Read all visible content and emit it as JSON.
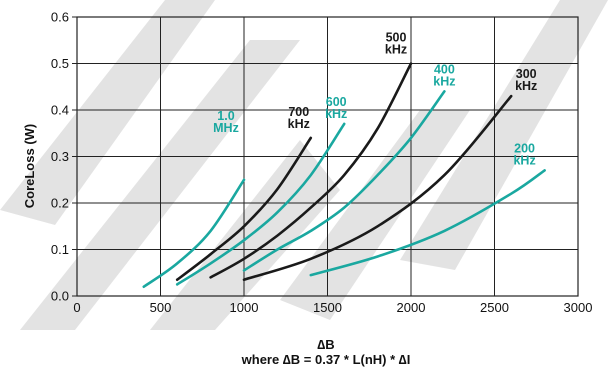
{
  "chart_data": {
    "type": "line",
    "title": "",
    "xlabel": "∆B",
    "xlabel_note": "where ∆B = 0.37 * L(nH) * ∆I",
    "ylabel": "CoreLoss (W)",
    "xlim": [
      0,
      3000
    ],
    "ylim": [
      0,
      0.6
    ],
    "xticks": [
      "0",
      "500",
      "1000",
      "1500",
      "2000",
      "2500",
      "3000"
    ],
    "yticks": [
      "0.0",
      "0.1",
      "0.2",
      "0.3",
      "0.4",
      "0.5",
      "0.6"
    ],
    "grid": true,
    "watermark": "IMAGE",
    "colors": {
      "black": "#1a1a1a",
      "teal": "#1aa8a0"
    },
    "series": [
      {
        "name": "1.0 MHz",
        "label_lines": [
          "1.0",
          "MHz"
        ],
        "color": "teal",
        "x": [
          400,
          600,
          800,
          1000
        ],
        "y": [
          0.02,
          0.07,
          0.14,
          0.25
        ]
      },
      {
        "name": "700 kHz",
        "label_lines": [
          "700",
          "kHz"
        ],
        "color": "black",
        "x": [
          600,
          800,
          1000,
          1200,
          1400
        ],
        "y": [
          0.035,
          0.09,
          0.15,
          0.23,
          0.34
        ]
      },
      {
        "name": "600 kHz",
        "label_lines": [
          "600",
          "kHz"
        ],
        "color": "teal",
        "x": [
          600,
          800,
          1000,
          1200,
          1400,
          1600
        ],
        "y": [
          0.025,
          0.07,
          0.12,
          0.18,
          0.26,
          0.37
        ]
      },
      {
        "name": "500 kHz",
        "label_lines": [
          "500",
          "kHz"
        ],
        "color": "black",
        "x": [
          800,
          1000,
          1200,
          1400,
          1600,
          1800,
          2000
        ],
        "y": [
          0.04,
          0.08,
          0.13,
          0.19,
          0.26,
          0.36,
          0.5
        ]
      },
      {
        "name": "400 kHz",
        "label_lines": [
          "400",
          "kHz"
        ],
        "color": "teal",
        "x": [
          1000,
          1200,
          1400,
          1600,
          1800,
          2000,
          2200
        ],
        "y": [
          0.055,
          0.1,
          0.14,
          0.19,
          0.26,
          0.34,
          0.44
        ]
      },
      {
        "name": "300 kHz",
        "label_lines": [
          "300",
          "kHz"
        ],
        "color": "black",
        "x": [
          1000,
          1400,
          1800,
          2200,
          2600
        ],
        "y": [
          0.035,
          0.08,
          0.15,
          0.26,
          0.43
        ]
      },
      {
        "name": "200 kHz",
        "label_lines": [
          "200",
          "kHz"
        ],
        "color": "teal",
        "x": [
          1400,
          1800,
          2200,
          2600,
          2800
        ],
        "y": [
          0.045,
          0.085,
          0.14,
          0.22,
          0.27
        ]
      }
    ]
  }
}
